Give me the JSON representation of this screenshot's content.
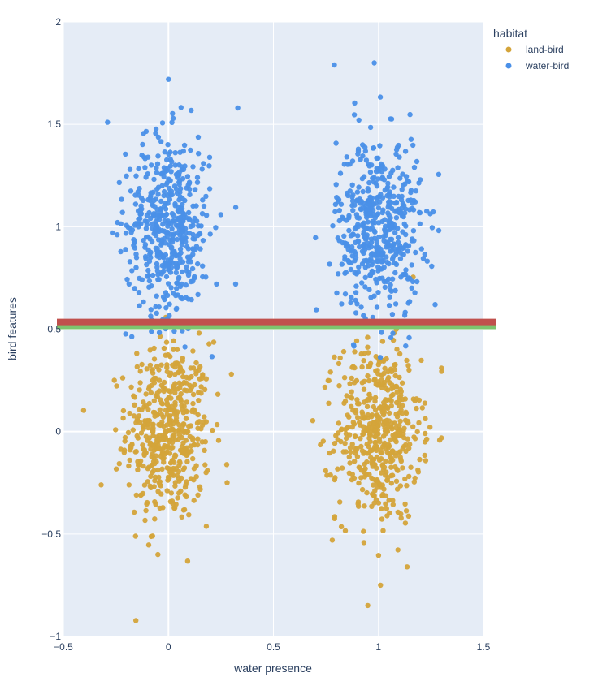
{
  "chart_data": {
    "type": "scatter",
    "title": "",
    "xlabel": "water presence",
    "ylabel": "bird features",
    "xlim": [
      -0.5,
      1.5
    ],
    "ylim": [
      -1,
      2
    ],
    "x_ticks": [
      -0.5,
      0,
      0.5,
      1,
      1.5
    ],
    "x_tick_labels": [
      "−0.5",
      "0",
      "0.5",
      "1",
      "1.5"
    ],
    "y_ticks": [
      -1,
      -0.5,
      0,
      0.5,
      1,
      1.5,
      2
    ],
    "y_tick_labels": [
      "−1",
      "−0.5",
      "0",
      "0.5",
      "1",
      "1.5",
      "2"
    ],
    "grid": true,
    "background_color": "#E5ECF6",
    "legend": {
      "title": "habitat",
      "placement": "top-right, outside plot",
      "entries": [
        "land-bird",
        "water-bird"
      ]
    },
    "series": [
      {
        "name": "land-bird",
        "color": "#D4A43A",
        "clusters": [
          {
            "x_center": 0.0,
            "x_spread": 0.1,
            "y_center": 0.0,
            "y_spread": 0.22,
            "count": 500
          },
          {
            "x_center": 1.0,
            "x_spread": 0.1,
            "y_center": 0.0,
            "y_spread": 0.22,
            "count": 500
          }
        ],
        "extreme_points": [
          {
            "x": -0.32,
            "y": -0.26
          },
          {
            "x": 0.3,
            "y": 0.28
          },
          {
            "x": 1.01,
            "y": -0.75
          },
          {
            "x": 0.78,
            "y": -0.53
          },
          {
            "x": 1.3,
            "y": 0.31
          },
          {
            "x": -0.05,
            "y": -0.6
          }
        ]
      },
      {
        "name": "water-bird",
        "color": "#4A90E8",
        "clusters": [
          {
            "x_center": 0.0,
            "x_spread": 0.1,
            "y_center": 1.0,
            "y_spread": 0.22,
            "count": 500
          },
          {
            "x_center": 1.0,
            "x_spread": 0.1,
            "y_center": 1.0,
            "y_spread": 0.22,
            "count": 500
          }
        ],
        "extreme_points": [
          {
            "x": 0.0,
            "y": 1.72
          },
          {
            "x": 0.98,
            "y": 1.8
          },
          {
            "x": 0.79,
            "y": 1.79
          },
          {
            "x": -0.29,
            "y": 1.51
          },
          {
            "x": 0.33,
            "y": 1.58
          },
          {
            "x": 1.27,
            "y": 0.62
          },
          {
            "x": 0.32,
            "y": 0.72
          }
        ]
      }
    ],
    "reference_lines": [
      {
        "name": "red-threshold-line",
        "y": 0.535,
        "color": "#C0504D"
      },
      {
        "name": "green-threshold-line",
        "y": 0.51,
        "color": "#7DC46E"
      }
    ]
  }
}
